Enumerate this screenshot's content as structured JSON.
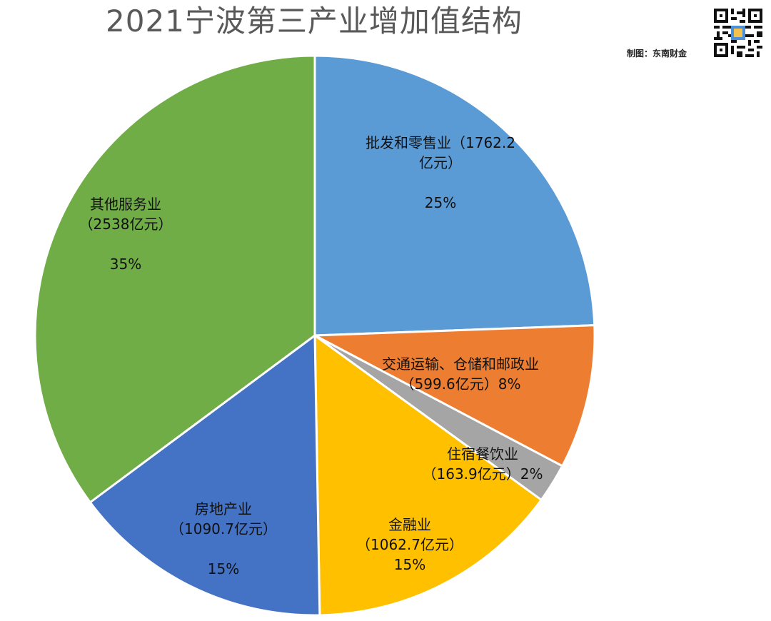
{
  "credit": "制图：东南财金",
  "colors": {
    "wholesale": "#5b9bd5",
    "transport": "#ed7d31",
    "hotel": "#a5a5a5",
    "finance": "#ffc000",
    "realestate": "#4472c4",
    "other": "#70ad47"
  },
  "qr_icon": "qr-code-icon",
  "chart_data": {
    "type": "pie",
    "title": "2021宁波第三产业增加值结构",
    "start_angle_deg": 0,
    "direction": "clockwise",
    "slices": [
      {
        "key": "wholesale",
        "value": 1762.2,
        "percent": 25,
        "lines": [
          "批发和零售业（1762.2",
          "亿元）",
          "",
          "25%"
        ]
      },
      {
        "key": "transport",
        "value": 599.6,
        "percent": 8,
        "lines": [
          "交通运输、仓储和邮政业",
          "（599.6亿元）8%"
        ]
      },
      {
        "key": "hotel",
        "value": 163.9,
        "percent": 2,
        "lines": [
          "住宿餐饮业",
          "（163.9亿元）2%"
        ]
      },
      {
        "key": "finance",
        "value": 1062.7,
        "percent": 15,
        "lines": [
          "金融业",
          "（1062.7亿元）",
          "15%"
        ]
      },
      {
        "key": "realestate",
        "value": 1090.7,
        "percent": 15,
        "lines": [
          "房地产业",
          "（1090.7亿元）",
          "",
          "15%"
        ]
      },
      {
        "key": "other",
        "value": 2538,
        "percent": 35,
        "lines": [
          "其他服务业",
          "（2538亿元）",
          "",
          "35%"
        ]
      }
    ]
  }
}
